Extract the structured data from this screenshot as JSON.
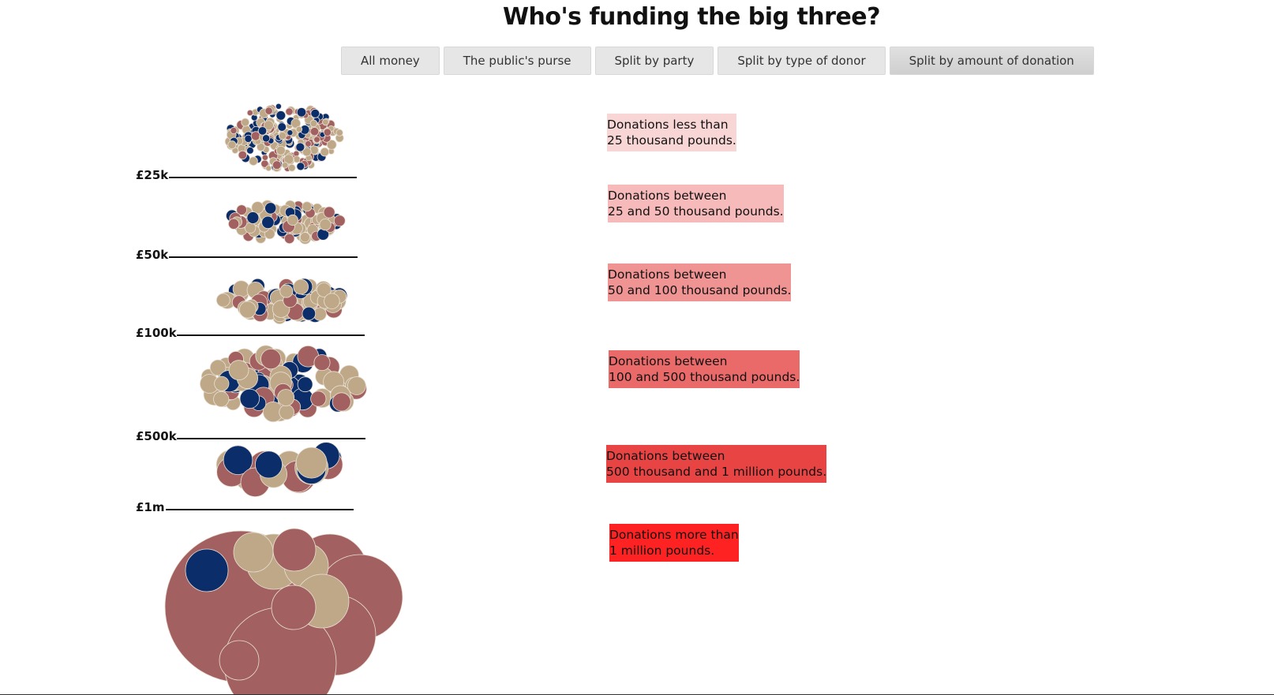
{
  "title": "Who's funding the big three?",
  "tabs": [
    {
      "label": "All money",
      "active": false
    },
    {
      "label": "The public's purse",
      "active": false
    },
    {
      "label": "Split by party",
      "active": false
    },
    {
      "label": "Split by type of donor",
      "active": false
    },
    {
      "label": "Split by amount of donation",
      "active": true
    }
  ],
  "colors": {
    "conservative": "#0b2e6b",
    "labour": "#a36060",
    "other": "#bfa888",
    "bubble_stroke": "#e8e0d4"
  },
  "chart_data": {
    "type": "bubble-cluster",
    "title": "Who's funding the big three?",
    "thresholds": [
      "£25k",
      "£50k",
      "£100k",
      "£500k",
      "£1m"
    ],
    "groups": [
      {
        "key": "lt25k",
        "description": [
          "Donations less than",
          "25 thousand pounds."
        ],
        "box_color": "#f9d6d6"
      },
      {
        "key": "25to50k",
        "description": [
          "Donations between",
          "25 and 50 thousand pounds."
        ],
        "box_color": "#f7baba"
      },
      {
        "key": "50to100k",
        "description": [
          "Donations between",
          "50 and 100 thousand pounds."
        ],
        "box_color": "#ef9393"
      },
      {
        "key": "100to500k",
        "description": [
          "Donations between",
          "100 and 500 thousand pounds."
        ],
        "box_color": "#ea6a6a"
      },
      {
        "key": "500kto1m",
        "description": [
          "Donations between",
          "500 thousand and 1 million pounds."
        ],
        "box_color": "#e94444"
      },
      {
        "key": "gt1m",
        "description": [
          "Donations more than",
          "1 million pounds."
        ],
        "box_color": "#ff2222"
      }
    ]
  }
}
